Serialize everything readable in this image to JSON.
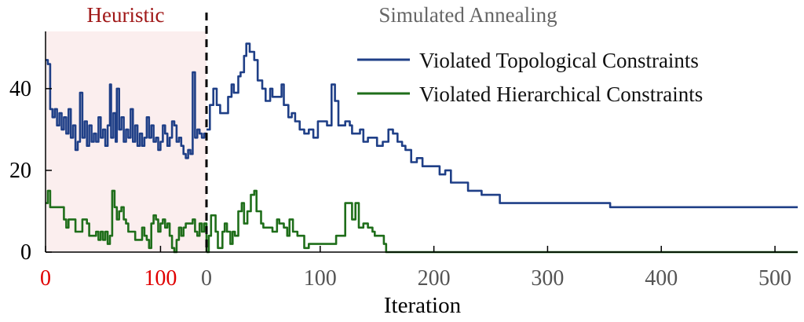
{
  "chart_data": {
    "type": "line",
    "xlabel": "Iteration",
    "ylabel": "",
    "ylim": [
      0,
      54
    ],
    "grid": false,
    "legend_position": "top-right",
    "phases": [
      {
        "label": "Heuristic",
        "label_color": "#a01818",
        "tick_color": "#e00000",
        "shade_color": "#fbeeee",
        "xlim": [
          0,
          140
        ],
        "x_ticks": [
          "0",
          "100"
        ]
      },
      {
        "label": "Simulated Annealing",
        "label_color": "#666666",
        "tick_color": "#555555",
        "xlim": [
          0,
          520
        ],
        "x_ticks": [
          "0",
          "100",
          "200",
          "300",
          "400",
          "500"
        ]
      }
    ],
    "y_ticks": [
      "0",
      "20",
      "40"
    ],
    "series": [
      {
        "name": "Violated Topological Constraints",
        "color": "#1f3f87",
        "heuristic": [
          [
            0,
            47
          ],
          [
            2,
            46
          ],
          [
            4,
            35
          ],
          [
            6,
            33
          ],
          [
            8,
            35
          ],
          [
            10,
            31
          ],
          [
            12,
            34
          ],
          [
            14,
            30
          ],
          [
            16,
            33
          ],
          [
            18,
            29
          ],
          [
            20,
            35
          ],
          [
            22,
            28
          ],
          [
            24,
            31
          ],
          [
            26,
            25
          ],
          [
            28,
            27
          ],
          [
            30,
            39
          ],
          [
            32,
            28
          ],
          [
            34,
            32
          ],
          [
            36,
            26
          ],
          [
            38,
            31
          ],
          [
            40,
            27
          ],
          [
            42,
            29
          ],
          [
            44,
            27
          ],
          [
            46,
            33
          ],
          [
            48,
            28
          ],
          [
            50,
            30
          ],
          [
            52,
            26
          ],
          [
            54,
            31
          ],
          [
            56,
            41
          ],
          [
            57,
            28
          ],
          [
            59,
            34
          ],
          [
            61,
            27
          ],
          [
            62,
            40
          ],
          [
            64,
            30
          ],
          [
            66,
            33
          ],
          [
            68,
            27
          ],
          [
            70,
            30
          ],
          [
            72,
            28
          ],
          [
            74,
            35
          ],
          [
            76,
            27
          ],
          [
            78,
            31
          ],
          [
            80,
            26
          ],
          [
            82,
            29
          ],
          [
            84,
            26
          ],
          [
            86,
            28
          ],
          [
            88,
            33
          ],
          [
            90,
            28
          ],
          [
            92,
            31
          ],
          [
            94,
            27
          ],
          [
            96,
            28
          ],
          [
            98,
            25
          ],
          [
            100,
            27
          ],
          [
            102,
            31
          ],
          [
            104,
            29
          ],
          [
            106,
            26
          ],
          [
            108,
            28
          ],
          [
            110,
            32
          ],
          [
            112,
            31
          ],
          [
            114,
            27
          ],
          [
            116,
            28
          ],
          [
            118,
            26
          ],
          [
            120,
            24
          ],
          [
            122,
            23
          ],
          [
            124,
            25
          ],
          [
            126,
            24
          ],
          [
            128,
            44
          ],
          [
            130,
            28
          ],
          [
            132,
            30
          ],
          [
            134,
            29
          ],
          [
            136,
            28
          ],
          [
            138,
            29
          ],
          [
            140,
            29
          ]
        ],
        "annealing": [
          [
            0,
            30
          ],
          [
            3,
            36
          ],
          [
            6,
            40
          ],
          [
            9,
            36
          ],
          [
            12,
            34
          ],
          [
            16,
            34
          ],
          [
            19,
            38
          ],
          [
            22,
            41
          ],
          [
            24,
            39
          ],
          [
            28,
            43
          ],
          [
            30,
            44
          ],
          [
            33,
            48
          ],
          [
            35,
            51
          ],
          [
            38,
            49
          ],
          [
            42,
            47
          ],
          [
            45,
            42
          ],
          [
            49,
            40
          ],
          [
            52,
            37
          ],
          [
            56,
            40
          ],
          [
            58,
            38
          ],
          [
            62,
            38
          ],
          [
            66,
            41
          ],
          [
            68,
            36
          ],
          [
            72,
            33
          ],
          [
            75,
            34
          ],
          [
            78,
            32
          ],
          [
            82,
            30
          ],
          [
            86,
            29
          ],
          [
            90,
            30
          ],
          [
            94,
            28
          ],
          [
            98,
            32
          ],
          [
            102,
            32
          ],
          [
            106,
            31
          ],
          [
            110,
            41
          ],
          [
            113,
            37
          ],
          [
            116,
            31
          ],
          [
            120,
            31
          ],
          [
            122,
            32
          ],
          [
            126,
            31
          ],
          [
            128,
            29
          ],
          [
            132,
            29
          ],
          [
            135,
            30
          ],
          [
            138,
            27
          ],
          [
            142,
            28
          ],
          [
            145,
            28
          ],
          [
            150,
            26
          ],
          [
            155,
            27
          ],
          [
            160,
            30
          ],
          [
            164,
            29
          ],
          [
            168,
            27
          ],
          [
            172,
            26
          ],
          [
            175,
            25
          ],
          [
            180,
            22
          ],
          [
            185,
            23
          ],
          [
            190,
            21
          ],
          [
            200,
            21
          ],
          [
            205,
            19
          ],
          [
            210,
            20
          ],
          [
            215,
            17
          ],
          [
            225,
            17
          ],
          [
            230,
            15
          ],
          [
            240,
            15
          ],
          [
            242,
            14
          ],
          [
            255,
            14
          ],
          [
            258,
            12
          ],
          [
            300,
            12
          ],
          [
            354,
            12
          ],
          [
            355,
            11
          ],
          [
            520,
            11
          ]
        ]
      },
      {
        "name": "Violated Hierarchical Constraints",
        "color": "#1f6e1a",
        "heuristic": [
          [
            0,
            12
          ],
          [
            2,
            15
          ],
          [
            4,
            11
          ],
          [
            6,
            11
          ],
          [
            10,
            11
          ],
          [
            14,
            11
          ],
          [
            16,
            8
          ],
          [
            18,
            6
          ],
          [
            20,
            8
          ],
          [
            24,
            8
          ],
          [
            26,
            5
          ],
          [
            30,
            5
          ],
          [
            32,
            8
          ],
          [
            36,
            7
          ],
          [
            38,
            4
          ],
          [
            42,
            4
          ],
          [
            44,
            5
          ],
          [
            46,
            3
          ],
          [
            48,
            5
          ],
          [
            50,
            3
          ],
          [
            52,
            5
          ],
          [
            54,
            2
          ],
          [
            56,
            4
          ],
          [
            58,
            15
          ],
          [
            60,
            11
          ],
          [
            62,
            8
          ],
          [
            64,
            10
          ],
          [
            66,
            11
          ],
          [
            68,
            8
          ],
          [
            70,
            7
          ],
          [
            72,
            5
          ],
          [
            76,
            5
          ],
          [
            78,
            3
          ],
          [
            82,
            3
          ],
          [
            84,
            6
          ],
          [
            86,
            4
          ],
          [
            88,
            3
          ],
          [
            90,
            1
          ],
          [
            92,
            7
          ],
          [
            94,
            9
          ],
          [
            96,
            8
          ],
          [
            98,
            5
          ],
          [
            100,
            7
          ],
          [
            102,
            8
          ],
          [
            104,
            6
          ],
          [
            106,
            7
          ],
          [
            108,
            4
          ],
          [
            110,
            1
          ],
          [
            112,
            0
          ],
          [
            114,
            3
          ],
          [
            116,
            6
          ],
          [
            118,
            4
          ],
          [
            120,
            6
          ],
          [
            122,
            7
          ],
          [
            126,
            7
          ],
          [
            128,
            8
          ],
          [
            130,
            5
          ],
          [
            132,
            4
          ],
          [
            134,
            7
          ],
          [
            136,
            5
          ],
          [
            138,
            7
          ],
          [
            140,
            0
          ]
        ],
        "annealing": [
          [
            0,
            0
          ],
          [
            2,
            4
          ],
          [
            4,
            9
          ],
          [
            8,
            5
          ],
          [
            10,
            1
          ],
          [
            14,
            5
          ],
          [
            16,
            7
          ],
          [
            18,
            5
          ],
          [
            21,
            2
          ],
          [
            23,
            5
          ],
          [
            25,
            4
          ],
          [
            28,
            10
          ],
          [
            31,
            12
          ],
          [
            33,
            7
          ],
          [
            36,
            10
          ],
          [
            39,
            14
          ],
          [
            42,
            15
          ],
          [
            44,
            10
          ],
          [
            48,
            7
          ],
          [
            50,
            6
          ],
          [
            54,
            6
          ],
          [
            58,
            5
          ],
          [
            62,
            8
          ],
          [
            64,
            7
          ],
          [
            68,
            6
          ],
          [
            71,
            4
          ],
          [
            73,
            8
          ],
          [
            76,
            5
          ],
          [
            80,
            4
          ],
          [
            84,
            4
          ],
          [
            86,
            1
          ],
          [
            90,
            2
          ],
          [
            100,
            2
          ],
          [
            112,
            2
          ],
          [
            114,
            4
          ],
          [
            118,
            4
          ],
          [
            122,
            12
          ],
          [
            125,
            12
          ],
          [
            128,
            8
          ],
          [
            131,
            12
          ],
          [
            134,
            6
          ],
          [
            138,
            7
          ],
          [
            142,
            6
          ],
          [
            146,
            5
          ],
          [
            148,
            4
          ],
          [
            152,
            4
          ],
          [
            156,
            2
          ],
          [
            158,
            0
          ],
          [
            520,
            0
          ]
        ]
      }
    ]
  }
}
